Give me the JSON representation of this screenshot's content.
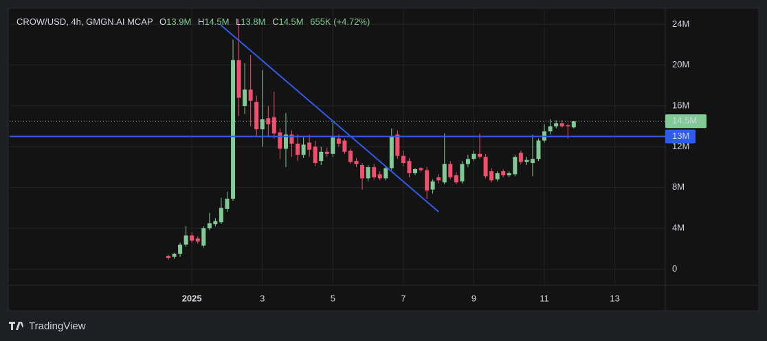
{
  "chart_data": {
    "type": "candlestick",
    "header": {
      "symbol": "CROW/USD, 4h, GMGN.AI MCAP",
      "ohlc": [
        {
          "key": "O",
          "value": "13.9M"
        },
        {
          "key": "H",
          "value": "14.5M"
        },
        {
          "key": "L",
          "value": "13.8M"
        },
        {
          "key": "C",
          "value": "14.5M"
        }
      ],
      "change": "655K (+4.72%)"
    },
    "x": [
      0.333,
      0.5,
      0.667,
      0.833,
      1,
      1.167,
      1.333,
      1.5,
      1.667,
      1.833,
      2,
      2.167,
      2.333,
      2.5,
      2.667,
      2.833,
      3,
      3.167,
      3.333,
      3.5,
      3.667,
      3.833,
      4,
      4.167,
      4.333,
      4.5,
      4.667,
      4.833,
      5,
      5.167,
      5.333,
      5.5,
      5.667,
      5.833,
      6,
      6.167,
      6.333,
      6.5,
      6.667,
      6.833,
      7,
      7.167,
      7.333,
      7.5,
      7.667,
      7.833,
      8,
      8.167,
      8.333,
      8.5,
      8.667,
      8.833,
      9,
      9.167,
      9.333,
      9.5,
      9.667,
      9.833,
      10,
      10.167,
      10.333,
      10.5,
      10.667,
      10.833,
      11,
      11.167,
      11.333,
      11.5,
      11.667,
      11.833
    ],
    "open": [
      1300000,
      1200000,
      1500000,
      2400000,
      3300000,
      3000000,
      2300000,
      4000000,
      4400000,
      4600000,
      5900000,
      6900000,
      20500000,
      16000000,
      17600000,
      16400000,
      13700000,
      14800000,
      14900000,
      13400000,
      11800000,
      13200000,
      12300000,
      11200000,
      12400000,
      12000000,
      10600000,
      11500000,
      11300000,
      12800000,
      12600000,
      11600000,
      10600000,
      10200000,
      8900000,
      10000000,
      9300000,
      8900000,
      9900000,
      13200000,
      11100000,
      10600000,
      9400000,
      9900000,
      9700000,
      7800000,
      9000000,
      8500000,
      10300000,
      9200000,
      8600000,
      10300000,
      10800000,
      11300000,
      11000000,
      9600000,
      8800000,
      9600000,
      9200000,
      9300000,
      11400000,
      10500000,
      10400000,
      10800000,
      12600000,
      13500000,
      14000000,
      14300000,
      14100000,
      13900000
    ],
    "high": [
      1400000,
      1600000,
      2600000,
      4200000,
      3600000,
      3200000,
      4200000,
      5500000,
      5000000,
      7000000,
      7600000,
      22500000,
      24500000,
      20200000,
      21000000,
      17000000,
      19500000,
      16000000,
      17400000,
      13800000,
      15300000,
      13600000,
      13200000,
      12900000,
      13200000,
      12600000,
      12000000,
      11900000,
      14400000,
      13200000,
      12800000,
      11800000,
      10900000,
      10400000,
      10200000,
      10300000,
      9600000,
      10100000,
      13800000,
      13600000,
      11600000,
      10900000,
      9900000,
      10000000,
      10000000,
      8800000,
      9300000,
      13300000,
      10600000,
      9500000,
      10600000,
      11200000,
      11600000,
      13300000,
      11300000,
      9900000,
      9600000,
      9800000,
      9600000,
      11200000,
      11600000,
      11000000,
      13200000,
      12800000,
      14200000,
      14700000,
      14600000,
      14600000,
      14300000,
      14500000
    ],
    "low": [
      900000,
      1000000,
      1200000,
      2200000,
      2600000,
      2500000,
      2100000,
      3800000,
      4200000,
      4400000,
      5600000,
      6700000,
      15000000,
      15200000,
      14000000,
      13000000,
      12000000,
      13000000,
      12800000,
      10800000,
      10000000,
      11000000,
      10600000,
      10900000,
      11000000,
      10100000,
      10200000,
      11000000,
      11000000,
      12000000,
      11300000,
      10300000,
      10000000,
      7800000,
      8600000,
      8800000,
      8700000,
      8700000,
      9700000,
      10800000,
      10100000,
      9000000,
      9200000,
      9500000,
      6900000,
      7400000,
      8400000,
      8300000,
      8800000,
      8300000,
      8400000,
      10000000,
      10600000,
      10800000,
      8900000,
      8500000,
      8600000,
      9000000,
      9000000,
      9100000,
      10300000,
      10200000,
      9100000,
      10600000,
      12400000,
      13200000,
      13800000,
      13900000,
      12800000,
      13800000
    ],
    "close": [
      1100000,
      1500000,
      2400000,
      3300000,
      2800000,
      2700000,
      4000000,
      4500000,
      4700000,
      6000000,
      6900000,
      20500000,
      16800000,
      17600000,
      16500000,
      13700000,
      14700000,
      14200000,
      13300000,
      11800000,
      13200000,
      12300000,
      11200000,
      12200000,
      11700000,
      10400000,
      11500000,
      11300000,
      12900000,
      12300000,
      11500000,
      10500000,
      10300000,
      8900000,
      10000000,
      9000000,
      8900000,
      9900000,
      13000000,
      11100000,
      10400000,
      9400000,
      9800000,
      9700000,
      7700000,
      8600000,
      8700000,
      10300000,
      9000000,
      8500000,
      10300000,
      10800000,
      11300000,
      11000000,
      9100000,
      8700000,
      9400000,
      9200000,
      9400000,
      11000000,
      10500000,
      10700000,
      10800000,
      12600000,
      13500000,
      14000000,
      14300000,
      14000000,
      14000000,
      14500000
    ],
    "up_color": "#81c995",
    "down_color": "#f0506e",
    "xlim": [
      -4.17,
      14.43
    ],
    "xticks": [
      {
        "value": 1,
        "label": "2025"
      },
      3,
      5,
      7,
      9,
      11,
      13
    ],
    "ylim": [
      -1590000,
      25440000
    ],
    "yticks": [
      0,
      {
        "value": 4000000,
        "label": "4M"
      },
      {
        "value": 8000000,
        "label": "8M"
      },
      {
        "value": 12000000,
        "label": "12M"
      },
      {
        "value": 16000000,
        "label": "16M"
      },
      {
        "value": 20000000,
        "label": "20M"
      },
      {
        "value": 24000000,
        "label": "24M"
      }
    ],
    "grid": true,
    "annotations": {
      "trend_line": {
        "x": [
          1.82,
          8.0
        ],
        "values": [
          23930000,
          5620000
        ],
        "color": "#2f5bea"
      },
      "horizontal_line": {
        "value": 13000000,
        "label": "13M",
        "color": "#2f5bea"
      },
      "last_price": {
        "value": 14500000,
        "label": "14.5M",
        "color": "#81c995"
      }
    }
  },
  "branding": "TradingView"
}
